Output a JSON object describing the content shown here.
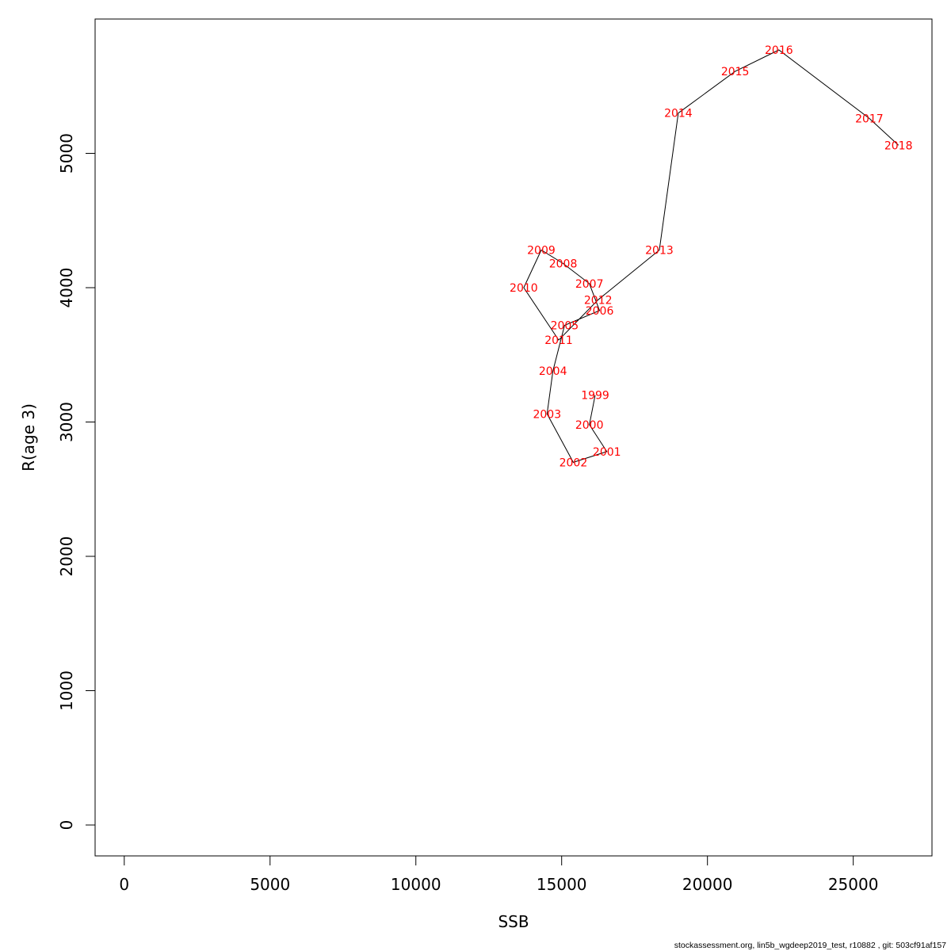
{
  "chart_data": {
    "type": "line",
    "xlabel": "SSB",
    "ylabel": "R(age 3)",
    "xlim": [
      -1000,
      27700
    ],
    "ylim": [
      -230,
      6000
    ],
    "x_ticks": [
      0,
      5000,
      10000,
      15000,
      20000,
      25000
    ],
    "y_ticks": [
      0,
      1000,
      2000,
      3000,
      4000,
      5000
    ],
    "line_color": "#000000",
    "label_color": "#ff0000",
    "points": [
      {
        "year": "1999",
        "x": 16150,
        "y": 3200
      },
      {
        "year": "2000",
        "x": 15950,
        "y": 2980
      },
      {
        "year": "2001",
        "x": 16550,
        "y": 2780
      },
      {
        "year": "2002",
        "x": 15400,
        "y": 2700
      },
      {
        "year": "2003",
        "x": 14500,
        "y": 3060
      },
      {
        "year": "2004",
        "x": 14700,
        "y": 3380
      },
      {
        "year": "2005",
        "x": 15100,
        "y": 3720
      },
      {
        "year": "2006",
        "x": 16300,
        "y": 3830
      },
      {
        "year": "2007",
        "x": 15950,
        "y": 4030
      },
      {
        "year": "2008",
        "x": 15050,
        "y": 4180
      },
      {
        "year": "2009",
        "x": 14300,
        "y": 4280
      },
      {
        "year": "2010",
        "x": 13700,
        "y": 4000
      },
      {
        "year": "2011",
        "x": 14900,
        "y": 3610
      },
      {
        "year": "2012",
        "x": 16250,
        "y": 3910
      },
      {
        "year": "2013",
        "x": 18350,
        "y": 4280
      },
      {
        "year": "2014",
        "x": 19000,
        "y": 5300
      },
      {
        "year": "2015",
        "x": 20950,
        "y": 5610
      },
      {
        "year": "2016",
        "x": 22450,
        "y": 5770
      },
      {
        "year": "2017",
        "x": 25550,
        "y": 5260
      },
      {
        "year": "2018",
        "x": 26550,
        "y": 5060
      }
    ]
  },
  "footer": {
    "text": "stockassessment.org, lin5b_wgdeep2019_test, r10882 , git: 503cf91af157"
  }
}
